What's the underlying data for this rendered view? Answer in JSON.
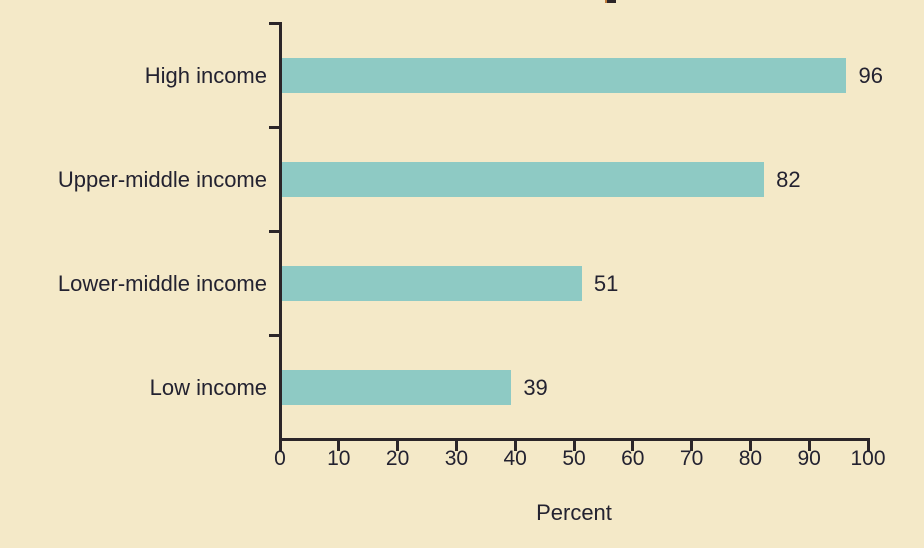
{
  "colors": {
    "background": "#F4E9C8",
    "bar": "#8ECAC4",
    "axis": "#2B2528",
    "text": "#232230"
  },
  "chart_data": {
    "type": "bar",
    "orientation": "horizontal",
    "title": "",
    "categories": [
      "High income",
      "Upper-middle income",
      "Lower-middle income",
      "Low income"
    ],
    "values": [
      96,
      82,
      51,
      39
    ],
    "data_labels": [
      "96",
      "82",
      "51",
      "39"
    ],
    "xlabel": "Percent",
    "ylabel": "",
    "xlim": [
      0,
      100
    ],
    "xticks": [
      0,
      10,
      20,
      30,
      40,
      50,
      60,
      70,
      80,
      90,
      100
    ],
    "xtick_labels": [
      "0",
      "10",
      "20",
      "30",
      "40",
      "50",
      "60",
      "70",
      "80",
      "90",
      "100"
    ],
    "grid": false,
    "legend_position": "none",
    "bar_color_hex": "#8ECAC4",
    "background_hex": "#F4E9C8"
  }
}
